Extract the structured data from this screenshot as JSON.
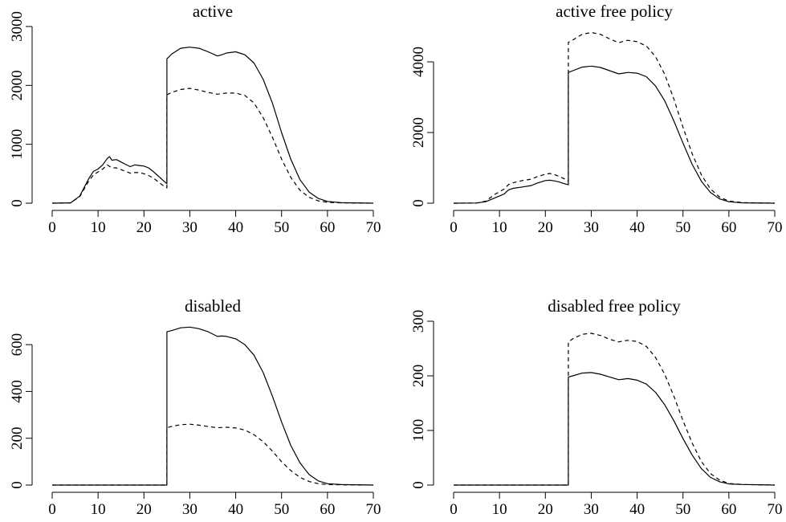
{
  "chart_data": [
    {
      "type": "line",
      "title": "active",
      "xlabel": "",
      "ylabel": "",
      "xlim": [
        0,
        70
      ],
      "ylim": [
        0,
        3000
      ],
      "xticks": [
        0,
        10,
        20,
        30,
        40,
        50,
        60,
        70
      ],
      "yticks": [
        0,
        1000,
        2000,
        3000
      ],
      "grid": false,
      "series": [
        {
          "style": "solid",
          "points": [
            [
              0,
              0
            ],
            [
              4,
              5
            ],
            [
              6,
              120
            ],
            [
              8,
              420
            ],
            [
              9,
              540
            ],
            [
              10,
              580
            ],
            [
              11,
              650
            ],
            [
              12,
              760
            ],
            [
              12.5,
              790
            ],
            [
              13,
              730
            ],
            [
              14,
              740
            ],
            [
              15,
              700
            ],
            [
              16,
              660
            ],
            [
              17,
              620
            ],
            [
              18,
              650
            ],
            [
              19,
              640
            ],
            [
              20,
              630
            ],
            [
              21,
              600
            ],
            [
              22,
              540
            ],
            [
              23,
              470
            ],
            [
              24,
              400
            ],
            [
              25,
              330
            ],
            [
              25.01,
              2450
            ],
            [
              26,
              2530
            ],
            [
              28,
              2630
            ],
            [
              30,
              2650
            ],
            [
              32,
              2630
            ],
            [
              34,
              2570
            ],
            [
              36,
              2500
            ],
            [
              37,
              2520
            ],
            [
              38,
              2550
            ],
            [
              40,
              2570
            ],
            [
              42,
              2520
            ],
            [
              44,
              2380
            ],
            [
              46,
              2100
            ],
            [
              48,
              1700
            ],
            [
              50,
              1200
            ],
            [
              52,
              750
            ],
            [
              54,
              400
            ],
            [
              56,
              190
            ],
            [
              58,
              80
            ],
            [
              60,
              30
            ],
            [
              63,
              8
            ],
            [
              70,
              0
            ]
          ]
        },
        {
          "style": "dashed",
          "points": [
            [
              0,
              0
            ],
            [
              4,
              5
            ],
            [
              6,
              110
            ],
            [
              8,
              380
            ],
            [
              9,
              480
            ],
            [
              10,
              530
            ],
            [
              11,
              580
            ],
            [
              12,
              650
            ],
            [
              13,
              600
            ],
            [
              14,
              600
            ],
            [
              15,
              570
            ],
            [
              16,
              540
            ],
            [
              17,
              510
            ],
            [
              18,
              520
            ],
            [
              19,
              520
            ],
            [
              20,
              500
            ],
            [
              21,
              470
            ],
            [
              22,
              430
            ],
            [
              23,
              370
            ],
            [
              24,
              310
            ],
            [
              25,
              260
            ],
            [
              25.01,
              1840
            ],
            [
              26,
              1880
            ],
            [
              28,
              1930
            ],
            [
              30,
              1950
            ],
            [
              32,
              1920
            ],
            [
              34,
              1880
            ],
            [
              36,
              1850
            ],
            [
              37,
              1860
            ],
            [
              38,
              1870
            ],
            [
              40,
              1870
            ],
            [
              42,
              1830
            ],
            [
              44,
              1700
            ],
            [
              46,
              1450
            ],
            [
              48,
              1120
            ],
            [
              50,
              750
            ],
            [
              52,
              440
            ],
            [
              54,
              220
            ],
            [
              56,
              100
            ],
            [
              58,
              40
            ],
            [
              60,
              15
            ],
            [
              63,
              5
            ],
            [
              70,
              0
            ]
          ]
        }
      ]
    },
    {
      "type": "line",
      "title": "active free policy",
      "xlabel": "",
      "ylabel": "",
      "xlim": [
        0,
        70
      ],
      "ylim": [
        0,
        5000
      ],
      "xticks": [
        0,
        10,
        20,
        30,
        40,
        50,
        60,
        70
      ],
      "yticks": [
        0,
        2000,
        4000
      ],
      "grid": false,
      "series": [
        {
          "style": "solid",
          "points": [
            [
              0,
              0
            ],
            [
              5,
              5
            ],
            [
              7,
              40
            ],
            [
              9,
              150
            ],
            [
              11,
              260
            ],
            [
              12,
              380
            ],
            [
              13,
              420
            ],
            [
              15,
              460
            ],
            [
              17,
              500
            ],
            [
              18,
              560
            ],
            [
              20,
              640
            ],
            [
              21,
              650
            ],
            [
              22,
              630
            ],
            [
              23,
              600
            ],
            [
              24,
              560
            ],
            [
              25,
              520
            ],
            [
              25.01,
              3700
            ],
            [
              26,
              3750
            ],
            [
              28,
              3850
            ],
            [
              30,
              3880
            ],
            [
              32,
              3840
            ],
            [
              34,
              3750
            ],
            [
              36,
              3660
            ],
            [
              37,
              3680
            ],
            [
              38,
              3700
            ],
            [
              40,
              3680
            ],
            [
              42,
              3580
            ],
            [
              44,
              3320
            ],
            [
              46,
              2900
            ],
            [
              48,
              2330
            ],
            [
              50,
              1700
            ],
            [
              52,
              1100
            ],
            [
              54,
              620
            ],
            [
              56,
              300
            ],
            [
              58,
              120
            ],
            [
              60,
              40
            ],
            [
              63,
              10
            ],
            [
              70,
              0
            ]
          ]
        },
        {
          "style": "dashed",
          "points": [
            [
              0,
              0
            ],
            [
              5,
              5
            ],
            [
              7,
              60
            ],
            [
              9,
              250
            ],
            [
              11,
              400
            ],
            [
              12,
              530
            ],
            [
              13,
              580
            ],
            [
              15,
              640
            ],
            [
              17,
              680
            ],
            [
              18,
              740
            ],
            [
              20,
              820
            ],
            [
              21,
              840
            ],
            [
              22,
              810
            ],
            [
              23,
              760
            ],
            [
              24,
              700
            ],
            [
              25,
              620
            ],
            [
              25.01,
              4550
            ],
            [
              26,
              4620
            ],
            [
              28,
              4780
            ],
            [
              30,
              4830
            ],
            [
              32,
              4780
            ],
            [
              34,
              4650
            ],
            [
              36,
              4540
            ],
            [
              37,
              4580
            ],
            [
              38,
              4610
            ],
            [
              40,
              4570
            ],
            [
              42,
              4450
            ],
            [
              44,
              4150
            ],
            [
              46,
              3650
            ],
            [
              48,
              2950
            ],
            [
              50,
              2150
            ],
            [
              52,
              1400
            ],
            [
              54,
              800
            ],
            [
              56,
              400
            ],
            [
              58,
              170
            ],
            [
              60,
              60
            ],
            [
              63,
              15
            ],
            [
              70,
              0
            ]
          ]
        }
      ]
    },
    {
      "type": "line",
      "title": "disabled",
      "xlabel": "",
      "ylabel": "",
      "xlim": [
        0,
        70
      ],
      "ylim": [
        0,
        700
      ],
      "xticks": [
        0,
        10,
        20,
        30,
        40,
        50,
        60,
        70
      ],
      "yticks": [
        0,
        200,
        400,
        600
      ],
      "grid": false,
      "series": [
        {
          "style": "solid",
          "points": [
            [
              0,
              0
            ],
            [
              25,
              0
            ],
            [
              25.01,
              655
            ],
            [
              26,
              660
            ],
            [
              28,
              672
            ],
            [
              30,
              675
            ],
            [
              32,
              668
            ],
            [
              34,
              655
            ],
            [
              36,
              635
            ],
            [
              37,
              637
            ],
            [
              38,
              635
            ],
            [
              40,
              625
            ],
            [
              42,
              600
            ],
            [
              44,
              555
            ],
            [
              46,
              480
            ],
            [
              48,
              380
            ],
            [
              50,
              270
            ],
            [
              52,
              170
            ],
            [
              54,
              95
            ],
            [
              56,
              45
            ],
            [
              58,
              18
            ],
            [
              60,
              6
            ],
            [
              63,
              2
            ],
            [
              70,
              0
            ]
          ]
        },
        {
          "style": "dashed",
          "points": [
            [
              0,
              0
            ],
            [
              25,
              0
            ],
            [
              25.01,
              245
            ],
            [
              26,
              250
            ],
            [
              28,
              258
            ],
            [
              30,
              260
            ],
            [
              32,
              256
            ],
            [
              34,
              250
            ],
            [
              36,
              245
            ],
            [
              37,
              246
            ],
            [
              38,
              247
            ],
            [
              40,
              244
            ],
            [
              42,
              235
            ],
            [
              44,
              215
            ],
            [
              46,
              185
            ],
            [
              48,
              145
            ],
            [
              50,
              100
            ],
            [
              52,
              62
            ],
            [
              54,
              33
            ],
            [
              56,
              15
            ],
            [
              58,
              6
            ],
            [
              60,
              2
            ],
            [
              63,
              1
            ],
            [
              70,
              0
            ]
          ]
        }
      ]
    },
    {
      "type": "line",
      "title": "disabled free policy",
      "xlabel": "",
      "ylabel": "",
      "xlim": [
        0,
        70
      ],
      "ylim": [
        0,
        300
      ],
      "xticks": [
        0,
        10,
        20,
        30,
        40,
        50,
        60,
        70
      ],
      "yticks": [
        0,
        100,
        200,
        300
      ],
      "grid": false,
      "series": [
        {
          "style": "solid",
          "points": [
            [
              0,
              0
            ],
            [
              25,
              0
            ],
            [
              25.01,
              198
            ],
            [
              26,
              200
            ],
            [
              28,
              205
            ],
            [
              30,
              206
            ],
            [
              32,
              203
            ],
            [
              34,
              198
            ],
            [
              36,
              193
            ],
            [
              37,
              194
            ],
            [
              38,
              195
            ],
            [
              40,
              192
            ],
            [
              42,
              185
            ],
            [
              44,
              170
            ],
            [
              46,
              147
            ],
            [
              48,
              118
            ],
            [
              50,
              85
            ],
            [
              52,
              55
            ],
            [
              54,
              30
            ],
            [
              56,
              14
            ],
            [
              58,
              6
            ],
            [
              60,
              2
            ],
            [
              63,
              1
            ],
            [
              70,
              0
            ]
          ]
        },
        {
          "style": "dashed",
          "points": [
            [
              0,
              0
            ],
            [
              25,
              0
            ],
            [
              25.01,
              262
            ],
            [
              26,
              268
            ],
            [
              28,
              276
            ],
            [
              30,
              278
            ],
            [
              32,
              274
            ],
            [
              34,
              267
            ],
            [
              36,
              262
            ],
            [
              37,
              264
            ],
            [
              38,
              265
            ],
            [
              40,
              263
            ],
            [
              42,
              254
            ],
            [
              44,
              234
            ],
            [
              46,
              203
            ],
            [
              48,
              163
            ],
            [
              50,
              118
            ],
            [
              52,
              77
            ],
            [
              54,
              43
            ],
            [
              56,
              21
            ],
            [
              58,
              9
            ],
            [
              60,
              3
            ],
            [
              63,
              1
            ],
            [
              70,
              0
            ]
          ]
        }
      ]
    }
  ]
}
